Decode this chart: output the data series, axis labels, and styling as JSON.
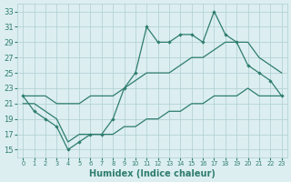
{
  "title": "",
  "xlabel": "Humidex (Indice chaleur)",
  "x": [
    0,
    1,
    2,
    3,
    4,
    5,
    6,
    7,
    8,
    9,
    10,
    11,
    12,
    13,
    14,
    15,
    16,
    17,
    18,
    19,
    20,
    21,
    22,
    23
  ],
  "y_jagged": [
    22,
    20,
    19,
    18,
    15,
    16,
    17,
    17,
    19,
    23,
    25,
    31,
    29,
    29,
    30,
    30,
    29,
    33,
    30,
    29,
    26,
    25,
    24,
    22
  ],
  "y_upper": [
    22,
    22,
    22,
    21,
    21,
    21,
    22,
    22,
    22,
    23,
    24,
    25,
    25,
    25,
    26,
    27,
    27,
    28,
    29,
    29,
    29,
    27,
    26,
    25
  ],
  "y_lower": [
    21,
    21,
    20,
    19,
    16,
    17,
    17,
    17,
    17,
    18,
    18,
    19,
    19,
    20,
    20,
    21,
    21,
    22,
    22,
    22,
    23,
    22,
    22,
    22
  ],
  "color_main": "#2E7D6E",
  "background": "#DCEEF0",
  "grid_color": "#AECDD1",
  "ylim_min": 14,
  "ylim_max": 34,
  "yticks": [
    15,
    17,
    19,
    21,
    23,
    25,
    27,
    29,
    31,
    33
  ],
  "xlim_min": -0.5,
  "xlim_max": 23.5
}
